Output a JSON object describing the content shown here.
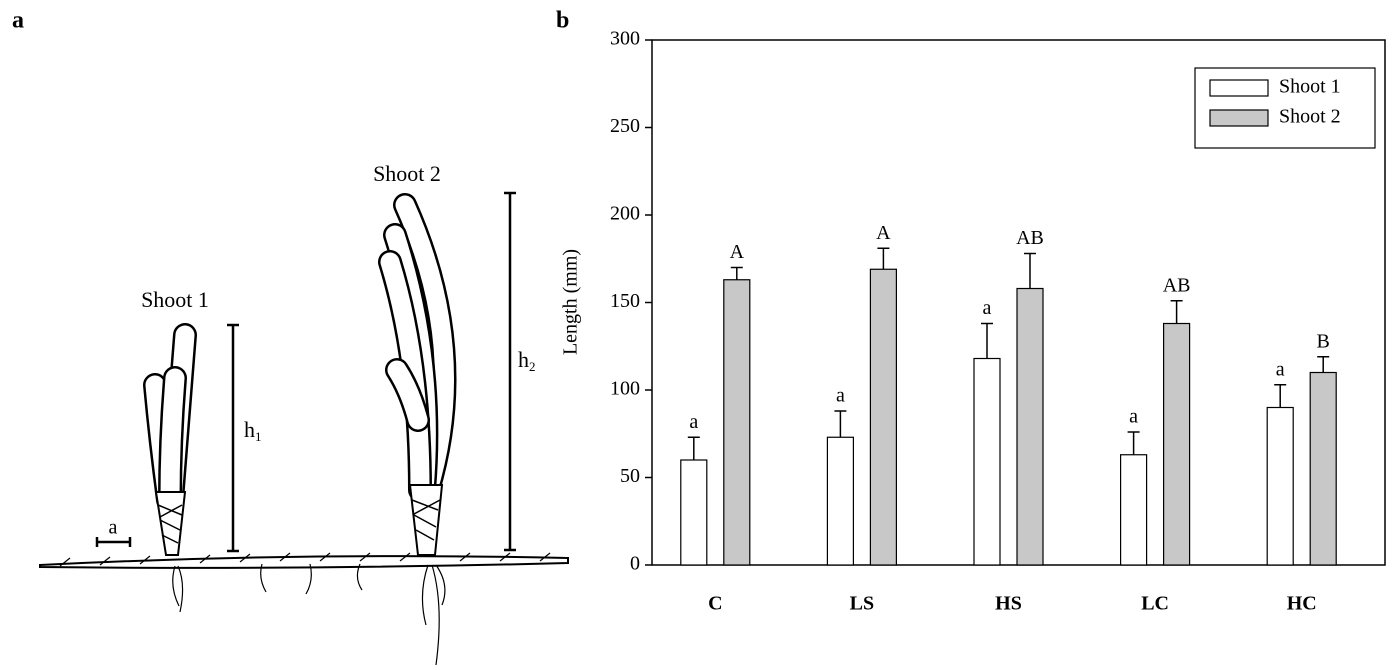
{
  "figure_labels": {
    "a": "a",
    "b": "b"
  },
  "drawing": {
    "shoot1": "Shoot 1",
    "shoot2": "Shoot 2",
    "h1": {
      "main": "h",
      "sub": "1"
    },
    "h2": {
      "main": "h",
      "sub": "2"
    },
    "scale": "a"
  },
  "chart_data": {
    "type": "bar",
    "y_label": "Length (mm)",
    "categories": [
      "C",
      "LS",
      "HS",
      "LC",
      "HC"
    ],
    "series": [
      {
        "name": "Shoot 1",
        "color": "#ffffff",
        "values": [
          60,
          73,
          118,
          63,
          90
        ],
        "errors": [
          13,
          15,
          20,
          13,
          13
        ],
        "letters": [
          "a",
          "a",
          "a",
          "a",
          "a"
        ]
      },
      {
        "name": "Shoot 2",
        "color": "#c8c8c8",
        "values": [
          163,
          169,
          158,
          138,
          110
        ],
        "errors": [
          7,
          12,
          20,
          13,
          9
        ],
        "letters": [
          "A",
          "A",
          "AB",
          "AB",
          "B"
        ]
      }
    ],
    "ylim": [
      0,
      300
    ],
    "yticks": [
      0,
      50,
      100,
      150,
      200,
      250,
      300
    ],
    "legend": "upper right"
  }
}
